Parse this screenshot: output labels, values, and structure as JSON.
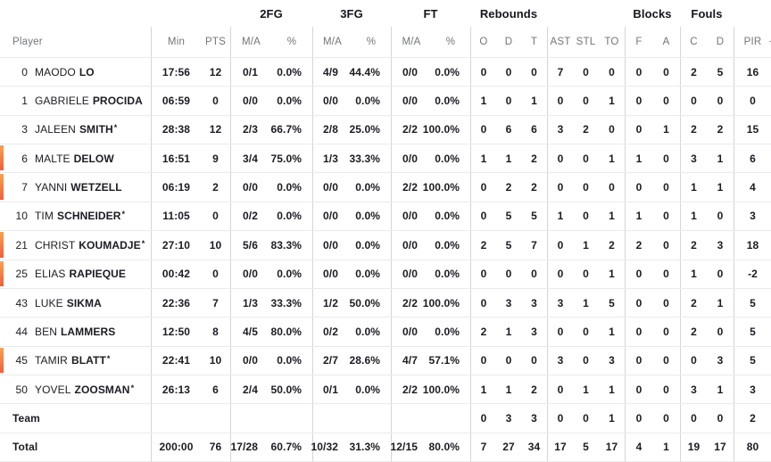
{
  "table": {
    "group_headers": {
      "fg2": "2FG",
      "fg3": "3FG",
      "ft": "FT",
      "rebounds": "Rebounds",
      "blocks": "Blocks",
      "fouls": "Fouls"
    },
    "column_headers": {
      "player": "Player",
      "min": "Min",
      "pts": "PTS",
      "ma": "M/A",
      "pct": "%",
      "o": "O",
      "d": "D",
      "t": "T",
      "ast": "AST",
      "stl": "STL",
      "to": "TO",
      "f": "F",
      "a": "A",
      "c": "C",
      "d2": "D",
      "pir": "PIR",
      "plus_partial": "+"
    },
    "colors": {
      "on_court_bar_top": "#f8a24e",
      "on_court_bar_bottom": "#ee5f41"
    },
    "rows": [
      {
        "type": "player",
        "number": "0",
        "first": "MAODO",
        "last": "LO",
        "starter": false,
        "on_court": false,
        "min": "17:56",
        "pts": "12",
        "fg2": "0/1",
        "fg2p": "0.0%",
        "fg3": "4/9",
        "fg3p": "44.4%",
        "ft": "0/0",
        "ftp": "0.0%",
        "o": "0",
        "d": "0",
        "t": "0",
        "ast": "7",
        "stl": "0",
        "to": "0",
        "f": "0",
        "a": "0",
        "c": "2",
        "dd": "5",
        "pir": "16"
      },
      {
        "type": "player",
        "number": "1",
        "first": "GABRIELE",
        "last": "PROCIDA",
        "starter": false,
        "on_court": false,
        "min": "06:59",
        "pts": "0",
        "fg2": "0/0",
        "fg2p": "0.0%",
        "fg3": "0/0",
        "fg3p": "0.0%",
        "ft": "0/0",
        "ftp": "0.0%",
        "o": "1",
        "d": "0",
        "t": "1",
        "ast": "0",
        "stl": "0",
        "to": "1",
        "f": "0",
        "a": "0",
        "c": "0",
        "dd": "0",
        "pir": "0"
      },
      {
        "type": "player",
        "number": "3",
        "first": "JALEEN",
        "last": "SMITH",
        "starter": true,
        "on_court": false,
        "min": "28:38",
        "pts": "12",
        "fg2": "2/3",
        "fg2p": "66.7%",
        "fg3": "2/8",
        "fg3p": "25.0%",
        "ft": "2/2",
        "ftp": "100.0%",
        "o": "0",
        "d": "6",
        "t": "6",
        "ast": "3",
        "stl": "2",
        "to": "0",
        "f": "0",
        "a": "1",
        "c": "2",
        "dd": "2",
        "pir": "15"
      },
      {
        "type": "player",
        "number": "6",
        "first": "MALTE",
        "last": "DELOW",
        "starter": false,
        "on_court": true,
        "min": "16:51",
        "pts": "9",
        "fg2": "3/4",
        "fg2p": "75.0%",
        "fg3": "1/3",
        "fg3p": "33.3%",
        "ft": "0/0",
        "ftp": "0.0%",
        "o": "1",
        "d": "1",
        "t": "2",
        "ast": "0",
        "stl": "0",
        "to": "1",
        "f": "1",
        "a": "0",
        "c": "3",
        "dd": "1",
        "pir": "6"
      },
      {
        "type": "player",
        "number": "7",
        "first": "YANNI",
        "last": "WETZELL",
        "starter": false,
        "on_court": true,
        "min": "06:19",
        "pts": "2",
        "fg2": "0/0",
        "fg2p": "0.0%",
        "fg3": "0/0",
        "fg3p": "0.0%",
        "ft": "2/2",
        "ftp": "100.0%",
        "o": "0",
        "d": "2",
        "t": "2",
        "ast": "0",
        "stl": "0",
        "to": "0",
        "f": "0",
        "a": "0",
        "c": "1",
        "dd": "1",
        "pir": "4"
      },
      {
        "type": "player",
        "number": "10",
        "first": "TIM",
        "last": "SCHNEIDER",
        "starter": true,
        "on_court": false,
        "min": "11:05",
        "pts": "0",
        "fg2": "0/2",
        "fg2p": "0.0%",
        "fg3": "0/0",
        "fg3p": "0.0%",
        "ft": "0/0",
        "ftp": "0.0%",
        "o": "0",
        "d": "5",
        "t": "5",
        "ast": "1",
        "stl": "0",
        "to": "1",
        "f": "1",
        "a": "0",
        "c": "1",
        "dd": "0",
        "pir": "3"
      },
      {
        "type": "player",
        "number": "21",
        "first": "CHRIST",
        "last": "KOUMADJE",
        "starter": true,
        "on_court": true,
        "min": "27:10",
        "pts": "10",
        "fg2": "5/6",
        "fg2p": "83.3%",
        "fg3": "0/0",
        "fg3p": "0.0%",
        "ft": "0/0",
        "ftp": "0.0%",
        "o": "2",
        "d": "5",
        "t": "7",
        "ast": "0",
        "stl": "1",
        "to": "2",
        "f": "2",
        "a": "0",
        "c": "2",
        "dd": "3",
        "pir": "18"
      },
      {
        "type": "player",
        "number": "25",
        "first": "ELIAS",
        "last": "RAPIEQUE",
        "starter": false,
        "on_court": true,
        "min": "00:42",
        "pts": "0",
        "fg2": "0/0",
        "fg2p": "0.0%",
        "fg3": "0/0",
        "fg3p": "0.0%",
        "ft": "0/0",
        "ftp": "0.0%",
        "o": "0",
        "d": "0",
        "t": "0",
        "ast": "0",
        "stl": "0",
        "to": "1",
        "f": "0",
        "a": "0",
        "c": "1",
        "dd": "0",
        "pir": "-2"
      },
      {
        "type": "player",
        "number": "43",
        "first": "LUKE",
        "last": "SIKMA",
        "starter": false,
        "on_court": false,
        "min": "22:36",
        "pts": "7",
        "fg2": "1/3",
        "fg2p": "33.3%",
        "fg3": "1/2",
        "fg3p": "50.0%",
        "ft": "2/2",
        "ftp": "100.0%",
        "o": "0",
        "d": "3",
        "t": "3",
        "ast": "3",
        "stl": "1",
        "to": "5",
        "f": "0",
        "a": "0",
        "c": "2",
        "dd": "1",
        "pir": "5"
      },
      {
        "type": "player",
        "number": "44",
        "first": "BEN",
        "last": "LAMMERS",
        "starter": false,
        "on_court": false,
        "min": "12:50",
        "pts": "8",
        "fg2": "4/5",
        "fg2p": "80.0%",
        "fg3": "0/2",
        "fg3p": "0.0%",
        "ft": "0/0",
        "ftp": "0.0%",
        "o": "2",
        "d": "1",
        "t": "3",
        "ast": "0",
        "stl": "0",
        "to": "1",
        "f": "0",
        "a": "0",
        "c": "2",
        "dd": "0",
        "pir": "5"
      },
      {
        "type": "player",
        "number": "45",
        "first": "TAMIR",
        "last": "BLATT",
        "starter": true,
        "on_court": true,
        "min": "22:41",
        "pts": "10",
        "fg2": "0/0",
        "fg2p": "0.0%",
        "fg3": "2/7",
        "fg3p": "28.6%",
        "ft": "4/7",
        "ftp": "57.1%",
        "o": "0",
        "d": "0",
        "t": "0",
        "ast": "3",
        "stl": "0",
        "to": "3",
        "f": "0",
        "a": "0",
        "c": "0",
        "dd": "3",
        "pir": "5"
      },
      {
        "type": "player",
        "number": "50",
        "first": "YOVEL",
        "last": "ZOOSMAN",
        "starter": true,
        "on_court": false,
        "min": "26:13",
        "pts": "6",
        "fg2": "2/4",
        "fg2p": "50.0%",
        "fg3": "0/1",
        "fg3p": "0.0%",
        "ft": "2/2",
        "ftp": "100.0%",
        "o": "1",
        "d": "1",
        "t": "2",
        "ast": "0",
        "stl": "1",
        "to": "1",
        "f": "0",
        "a": "0",
        "c": "3",
        "dd": "1",
        "pir": "3"
      },
      {
        "type": "team",
        "label": "Team",
        "min": "",
        "pts": "",
        "fg2": "",
        "fg2p": "",
        "fg3": "",
        "fg3p": "",
        "ft": "",
        "ftp": "",
        "o": "0",
        "d": "3",
        "t": "3",
        "ast": "0",
        "stl": "0",
        "to": "1",
        "f": "0",
        "a": "0",
        "c": "0",
        "dd": "0",
        "pir": "2"
      },
      {
        "type": "total",
        "label": "Total",
        "min": "200:00",
        "pts": "76",
        "fg2": "17/28",
        "fg2p": "60.7%",
        "fg3": "10/32",
        "fg3p": "31.3%",
        "ft": "12/15",
        "ftp": "80.0%",
        "o": "7",
        "d": "27",
        "t": "34",
        "ast": "17",
        "stl": "5",
        "to": "17",
        "f": "4",
        "a": "1",
        "c": "19",
        "dd": "17",
        "pir": "80"
      }
    ]
  }
}
